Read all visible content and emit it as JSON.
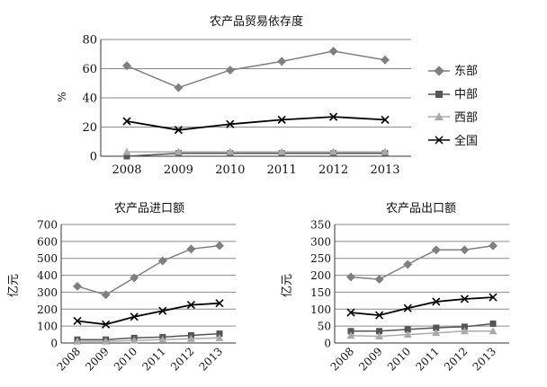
{
  "chart_data": [
    {
      "type": "line",
      "title": "农产品贸易依存度",
      "xlabel": "",
      "ylabel": "%",
      "categories": [
        "2008",
        "2009",
        "2010",
        "2011",
        "2012",
        "2013"
      ],
      "ylim": [
        0,
        80
      ],
      "yticks": [
        0,
        20,
        40,
        60,
        80
      ],
      "grid": true,
      "legend": "right",
      "series": [
        {
          "name": "东部",
          "marker": "diamond",
          "color": "#7f7f7f",
          "values": [
            62,
            47,
            59,
            65,
            72,
            66
          ]
        },
        {
          "name": "中部",
          "marker": "square",
          "color": "#555555",
          "values": [
            0,
            2,
            2,
            2,
            2,
            2
          ]
        },
        {
          "name": "西部",
          "marker": "triangle",
          "color": "#aaaaaa",
          "values": [
            3,
            3,
            3,
            3,
            3,
            3
          ]
        },
        {
          "name": "全国",
          "marker": "x",
          "color": "#000000",
          "values": [
            24,
            18,
            22,
            25,
            27,
            25
          ]
        }
      ]
    },
    {
      "type": "line",
      "title": "农产品进口额",
      "xlabel": "",
      "ylabel": "亿元",
      "categories": [
        "2008",
        "2009",
        "2010",
        "2011",
        "2012",
        "2013"
      ],
      "ylim": [
        0,
        700
      ],
      "yticks": [
        0,
        100,
        200,
        300,
        400,
        500,
        600,
        700
      ],
      "grid": true,
      "series": [
        {
          "name": "东部",
          "marker": "diamond",
          "color": "#7f7f7f",
          "values": [
            335,
            285,
            385,
            485,
            555,
            575
          ]
        },
        {
          "name": "中部",
          "marker": "square",
          "color": "#555555",
          "values": [
            20,
            20,
            30,
            35,
            45,
            55
          ]
        },
        {
          "name": "西部",
          "marker": "triangle",
          "color": "#aaaaaa",
          "values": [
            10,
            10,
            15,
            20,
            25,
            30
          ]
        },
        {
          "name": "全国",
          "marker": "x",
          "color": "#000000",
          "values": [
            130,
            110,
            155,
            190,
            225,
            235
          ]
        }
      ]
    },
    {
      "type": "line",
      "title": "农产品出口额",
      "xlabel": "",
      "ylabel": "亿元",
      "categories": [
        "2008",
        "2009",
        "2010",
        "2011",
        "2012",
        "2013"
      ],
      "ylim": [
        0,
        350
      ],
      "yticks": [
        0,
        50,
        100,
        150,
        200,
        250,
        300,
        350
      ],
      "grid": true,
      "series": [
        {
          "name": "东部",
          "marker": "diamond",
          "color": "#7f7f7f",
          "values": [
            195,
            188,
            232,
            275,
            275,
            287
          ]
        },
        {
          "name": "中部",
          "marker": "square",
          "color": "#555555",
          "values": [
            35,
            35,
            40,
            45,
            48,
            57
          ]
        },
        {
          "name": "西部",
          "marker": "triangle",
          "color": "#aaaaaa",
          "values": [
            22,
            20,
            25,
            30,
            35,
            35
          ]
        },
        {
          "name": "全国",
          "marker": "x",
          "color": "#000000",
          "values": [
            90,
            82,
            103,
            122,
            130,
            135
          ]
        }
      ]
    }
  ]
}
